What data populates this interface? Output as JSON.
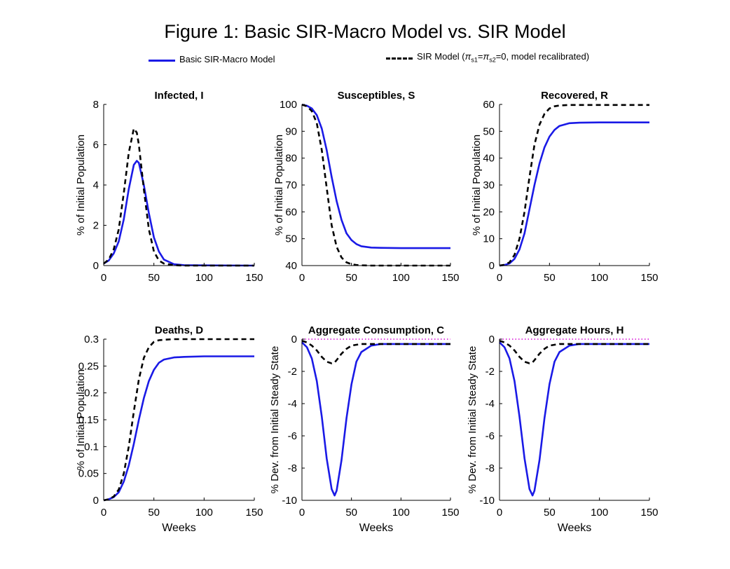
{
  "figure": {
    "title": "Figure 1: Basic SIR-Macro Model vs. SIR Model",
    "legend": {
      "placement": "top",
      "entries": [
        {
          "name": "Basic SIR-Macro Model",
          "color": "#1a1ae6",
          "style": "solid"
        },
        {
          "name_parts": [
            "SIR Model (",
            "π",
            "s1",
            "=",
            "π",
            "s2",
            "=0, model recalibrated)"
          ],
          "color": "#000000",
          "style": "dashed"
        }
      ]
    }
  },
  "chart_data": [
    {
      "type": "line",
      "title": "Infected, I",
      "xlabel": "",
      "ylabel": "% of Initial Population",
      "xlim": [
        0,
        150
      ],
      "ylim": [
        0,
        8
      ],
      "xticks": [
        "0",
        "50",
        "100",
        "150"
      ],
      "yticks": [
        "0",
        "2",
        "4",
        "6",
        "8"
      ],
      "x": [
        0,
        5,
        10,
        15,
        20,
        25,
        30,
        33,
        35,
        40,
        45,
        50,
        55,
        60,
        70,
        80,
        100,
        150
      ],
      "series": [
        {
          "values": [
            0.1,
            0.25,
            0.6,
            1.2,
            2.3,
            3.8,
            5.0,
            5.2,
            5.1,
            4.0,
            2.6,
            1.4,
            0.7,
            0.3,
            0.07,
            0.02,
            0.01,
            0.0
          ],
          "color": "#1a1ae6",
          "style": "solid"
        },
        {
          "values": [
            0.1,
            0.3,
            0.8,
            1.8,
            3.6,
            5.6,
            6.8,
            6.6,
            6.0,
            3.8,
            1.8,
            0.7,
            0.25,
            0.1,
            0.02,
            0.0,
            0.0,
            0.0
          ],
          "color": "#000000",
          "style": "dashed"
        }
      ]
    },
    {
      "type": "line",
      "title": "Susceptibles, S",
      "xlabel": "",
      "ylabel": "% of Initial Population",
      "xlim": [
        0,
        150
      ],
      "ylim": [
        40,
        100
      ],
      "xticks": [
        "0",
        "50",
        "100",
        "150"
      ],
      "yticks": [
        "40",
        "50",
        "60",
        "70",
        "80",
        "90",
        "100"
      ],
      "x": [
        0,
        5,
        10,
        15,
        20,
        25,
        30,
        35,
        40,
        45,
        50,
        55,
        60,
        70,
        80,
        100,
        150
      ],
      "series": [
        {
          "values": [
            99.9,
            99.5,
            98.5,
            96,
            91,
            83,
            73,
            64,
            57,
            52,
            49.5,
            48,
            47.2,
            46.7,
            46.6,
            46.5,
            46.5
          ],
          "color": "#1a1ae6",
          "style": "solid"
        },
        {
          "values": [
            99.9,
            99.3,
            97.5,
            93,
            83,
            69,
            55,
            47,
            43,
            41.2,
            40.5,
            40.2,
            40.1,
            40.0,
            40.0,
            40.0,
            40.0
          ],
          "color": "#000000",
          "style": "dashed"
        }
      ]
    },
    {
      "type": "line",
      "title": "Recovered, R",
      "xlabel": "",
      "ylabel": "% of Initial Population",
      "xlim": [
        0,
        150
      ],
      "ylim": [
        0,
        60
      ],
      "xticks": [
        "0",
        "50",
        "100",
        "150"
      ],
      "yticks": [
        "0",
        "10",
        "20",
        "30",
        "40",
        "50",
        "60"
      ],
      "x": [
        0,
        5,
        10,
        15,
        20,
        25,
        30,
        35,
        40,
        45,
        50,
        55,
        60,
        70,
        80,
        100,
        150
      ],
      "series": [
        {
          "values": [
            0,
            0.2,
            0.8,
            2.5,
            6,
            12,
            21,
            30,
            38,
            44,
            48,
            50.5,
            52,
            53,
            53.2,
            53.3,
            53.3
          ],
          "color": "#1a1ae6",
          "style": "solid"
        },
        {
          "values": [
            0,
            0.3,
            1.2,
            4,
            10,
            20,
            33,
            45,
            52.5,
            56.5,
            58.5,
            59.3,
            59.6,
            59.8,
            59.8,
            59.8,
            59.8
          ],
          "color": "#000000",
          "style": "dashed"
        }
      ]
    },
    {
      "type": "line",
      "title": "Deaths, D",
      "xlabel": "Weeks",
      "ylabel": "% of Initial Population",
      "xlim": [
        0,
        150
      ],
      "ylim": [
        0,
        0.3
      ],
      "xticks": [
        "0",
        "50",
        "100",
        "150"
      ],
      "yticks": [
        "0",
        "0.05",
        "0.1",
        "0.15",
        "0.2",
        "0.25",
        "0.3"
      ],
      "x": [
        0,
        5,
        10,
        15,
        20,
        25,
        30,
        35,
        40,
        45,
        50,
        55,
        60,
        70,
        80,
        100,
        150
      ],
      "series": [
        {
          "values": [
            0,
            0.002,
            0.006,
            0.015,
            0.035,
            0.065,
            0.105,
            0.15,
            0.19,
            0.222,
            0.243,
            0.256,
            0.262,
            0.266,
            0.267,
            0.268,
            0.268
          ],
          "color": "#1a1ae6",
          "style": "solid"
        },
        {
          "values": [
            0,
            0.002,
            0.007,
            0.02,
            0.05,
            0.1,
            0.165,
            0.225,
            0.265,
            0.285,
            0.295,
            0.298,
            0.299,
            0.3,
            0.3,
            0.3,
            0.3
          ],
          "color": "#000000",
          "style": "dashed"
        }
      ]
    },
    {
      "type": "line",
      "title": "Aggregate Consumption, C",
      "xlabel": "Weeks",
      "ylabel": "% Dev. from Initial Steady State",
      "xlim": [
        0,
        150
      ],
      "ylim": [
        -10,
        0
      ],
      "xticks": [
        "0",
        "50",
        "100",
        "150"
      ],
      "yticks": [
        "-10",
        "-8",
        "-6",
        "-4",
        "-2",
        "0"
      ],
      "x": [
        0,
        5,
        10,
        15,
        20,
        25,
        30,
        33,
        35,
        40,
        45,
        50,
        55,
        60,
        70,
        80,
        100,
        150
      ],
      "series": [
        {
          "values": [
            -0.2,
            -0.5,
            -1.2,
            -2.6,
            -4.8,
            -7.4,
            -9.3,
            -9.7,
            -9.4,
            -7.5,
            -4.9,
            -2.8,
            -1.4,
            -0.8,
            -0.4,
            -0.3,
            -0.3,
            -0.3
          ],
          "color": "#1a1ae6",
          "style": "solid"
        },
        {
          "values": [
            -0.1,
            -0.2,
            -0.4,
            -0.7,
            -1.1,
            -1.4,
            -1.5,
            -1.45,
            -1.3,
            -0.9,
            -0.6,
            -0.4,
            -0.35,
            -0.3,
            -0.3,
            -0.3,
            -0.3,
            -0.3
          ],
          "color": "#000000",
          "style": "dashed"
        },
        {
          "values": [
            0,
            0,
            0,
            0,
            0,
            0,
            0,
            0,
            0,
            0,
            0,
            0,
            0,
            0,
            0,
            0,
            0,
            0
          ],
          "color": "#e046e0",
          "style": "dotted"
        }
      ]
    },
    {
      "type": "line",
      "title": "Aggregate Hours, H",
      "xlabel": "Weeks",
      "ylabel": "% Dev. from Initial Steady State",
      "xlim": [
        0,
        150
      ],
      "ylim": [
        -10,
        0
      ],
      "xticks": [
        "0",
        "50",
        "100",
        "150"
      ],
      "yticks": [
        "-10",
        "-8",
        "-6",
        "-4",
        "-2",
        "0"
      ],
      "x": [
        0,
        5,
        10,
        15,
        20,
        25,
        30,
        33,
        35,
        40,
        45,
        50,
        55,
        60,
        70,
        80,
        100,
        150
      ],
      "series": [
        {
          "values": [
            -0.2,
            -0.5,
            -1.2,
            -2.6,
            -4.8,
            -7.4,
            -9.3,
            -9.7,
            -9.4,
            -7.5,
            -4.9,
            -2.8,
            -1.4,
            -0.8,
            -0.4,
            -0.3,
            -0.3,
            -0.3
          ],
          "color": "#1a1ae6",
          "style": "solid"
        },
        {
          "values": [
            -0.1,
            -0.2,
            -0.4,
            -0.7,
            -1.1,
            -1.4,
            -1.5,
            -1.45,
            -1.3,
            -0.9,
            -0.6,
            -0.4,
            -0.35,
            -0.3,
            -0.3,
            -0.3,
            -0.3,
            -0.3
          ],
          "color": "#000000",
          "style": "dashed"
        },
        {
          "values": [
            0,
            0,
            0,
            0,
            0,
            0,
            0,
            0,
            0,
            0,
            0,
            0,
            0,
            0,
            0,
            0,
            0,
            0
          ],
          "color": "#e046e0",
          "style": "dotted"
        }
      ]
    }
  ]
}
